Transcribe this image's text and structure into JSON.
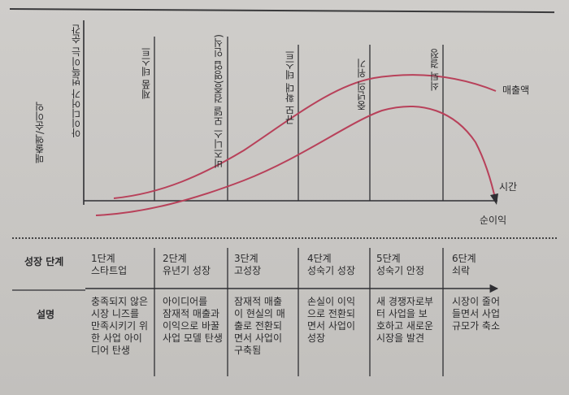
{
  "axes": {
    "y_label": "매출액/순이익",
    "x_label": "시간"
  },
  "milestones": [
    "아이디어가 번뜩이는 순간",
    "제품 테스트",
    "비즈니스 모델 검증(영업 인식)",
    "규모 확대 테스트",
    "중년의 위기",
    "쇠퇴 결정"
  ],
  "curves": {
    "revenue": "매출액",
    "profit": "순이익"
  },
  "table": {
    "row_headers": {
      "stage": "성장 단계",
      "description": "설명"
    },
    "stages": [
      {
        "title": "1단계",
        "name": "스타트업",
        "desc": [
          "충족되지 않은",
          "시장 니즈를",
          "만족시키기 위",
          "한 사업 아이",
          "디어 탄생"
        ]
      },
      {
        "title": "2단계",
        "name": "유년기 성장",
        "desc": [
          "아이디어를",
          "잠재적 매출과",
          "이익으로 바꿀",
          "사업 모델 탄생"
        ]
      },
      {
        "title": "3단계",
        "name": "고성장",
        "desc": [
          "잠재적 매출",
          "이 현실의 매",
          "출로 전환되",
          "면서 사업이",
          "구축됨"
        ]
      },
      {
        "title": "4단계",
        "name": "성숙기 성장",
        "desc": [
          "손실이 이익",
          "으로 전환되",
          "면서 사업이",
          "성장"
        ]
      },
      {
        "title": "5단계",
        "name": "성숙기 안정",
        "desc": [
          "새 경쟁자로부",
          "터 사업을 보",
          "호하고 새로운",
          "시장을 발견"
        ]
      },
      {
        "title": "6단계",
        "name": "쇠락",
        "desc": [
          "시장이 줄어",
          "들면서 사업",
          "규모가 축소"
        ]
      }
    ]
  },
  "colors": {
    "curve": "#b8415a",
    "line": "#2f2f33"
  }
}
